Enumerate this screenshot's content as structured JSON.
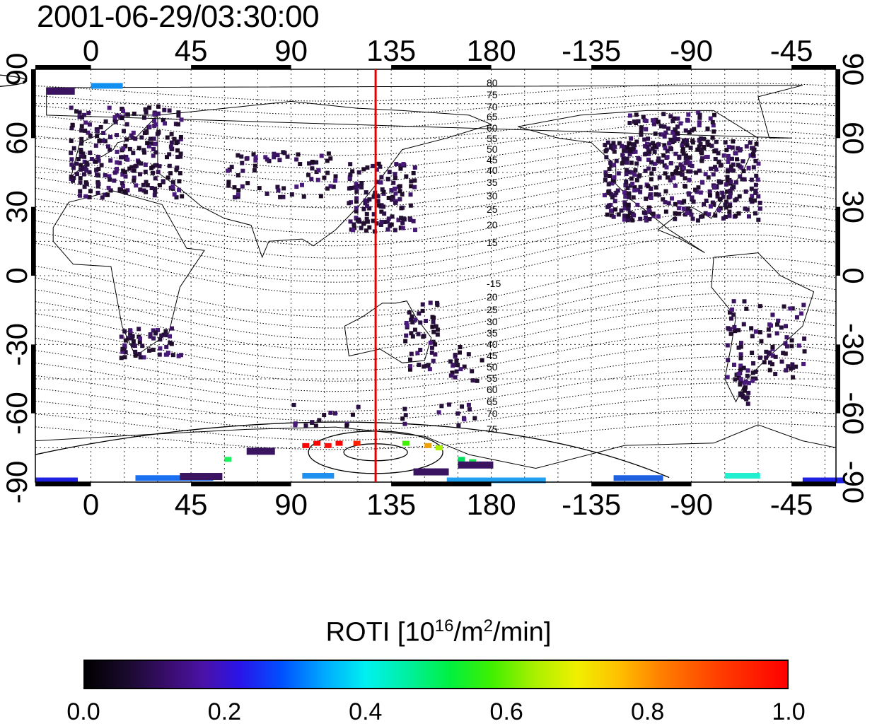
{
  "title": "2001-06-29/03:30:00",
  "map": {
    "projection": "equirectangular",
    "lon_range": [
      -25,
      335
    ],
    "lat_range": [
      -90,
      90
    ],
    "top_lon_labels": [
      "0",
      "45",
      "90",
      "135",
      "180",
      "-135",
      "-90",
      "-45"
    ],
    "bottom_lon_labels": [
      "0",
      "45",
      "90",
      "135",
      "180",
      "-135",
      "-90",
      "-45"
    ],
    "left_lat_labels": [
      "90",
      "60",
      "30",
      "0",
      "-30",
      "-60",
      "-90"
    ],
    "right_lat_labels": [
      "90",
      "60",
      "30",
      "0",
      "-30",
      "-60",
      "-90"
    ],
    "marker_line_lon": 128,
    "marker_line_color": "#e00000",
    "contour_labels_north": [
      "80",
      "75",
      "70",
      "65",
      "60",
      "55",
      "50",
      "45",
      "40",
      "35",
      "30",
      "25",
      "20",
      "15"
    ],
    "contour_labels_south": [
      "-15",
      "20",
      "25",
      "30",
      "35",
      "40",
      "45",
      "50",
      "55",
      "60",
      "65",
      "70",
      "75"
    ]
  },
  "colorbar": {
    "label_prefix": "ROTI  [10",
    "label_sup1": "16",
    "label_mid": "/m",
    "label_sup2": "2",
    "label_suffix": "/min]",
    "ticks": [
      "0.0",
      "0.2",
      "0.4",
      "0.6",
      "0.8",
      "1.0"
    ],
    "range": [
      0.0,
      1.0
    ]
  }
}
